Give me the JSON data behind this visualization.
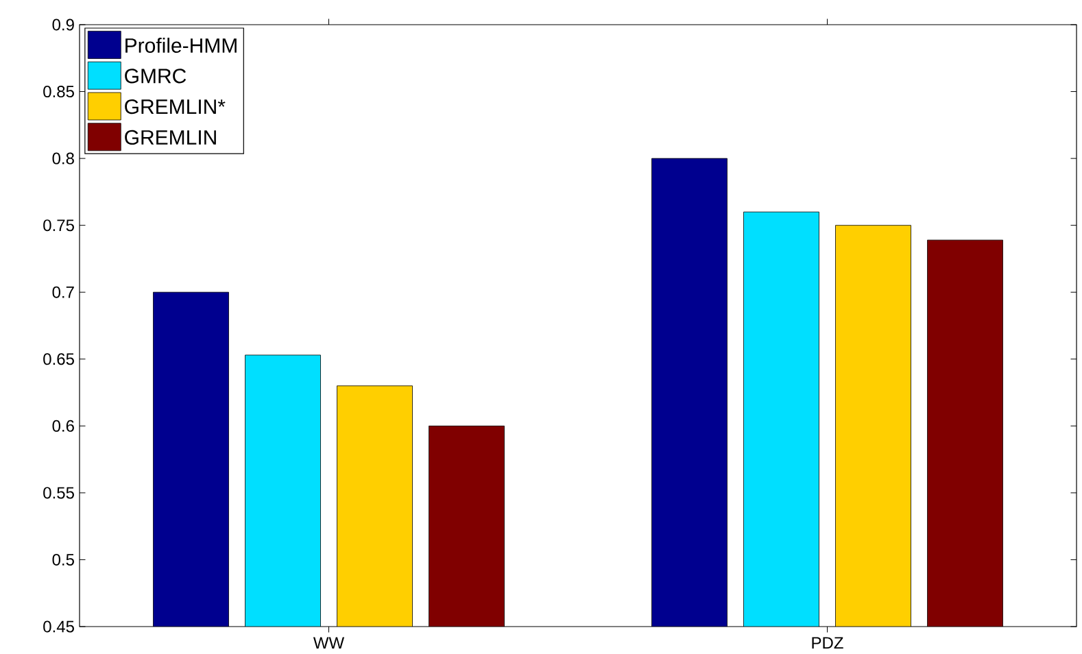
{
  "chart_data": {
    "type": "bar",
    "categories": [
      "WW",
      "PDZ"
    ],
    "series": [
      {
        "name": "Profile-HMM",
        "color": "#00008f",
        "values": [
          0.7,
          0.8
        ]
      },
      {
        "name": "GMRC",
        "color": "#00dfff",
        "values": [
          0.653,
          0.76
        ]
      },
      {
        "name": "GREMLIN*",
        "color": "#ffcf00",
        "values": [
          0.63,
          0.75
        ]
      },
      {
        "name": "GREMLIN",
        "color": "#800000",
        "values": [
          0.6,
          0.739
        ]
      }
    ],
    "ylim": [
      0.45,
      0.9
    ],
    "yticks": [
      0.45,
      0.5,
      0.55,
      0.6,
      0.65,
      0.7,
      0.75,
      0.8,
      0.85,
      0.9
    ],
    "grid": false,
    "legend": "top left"
  }
}
